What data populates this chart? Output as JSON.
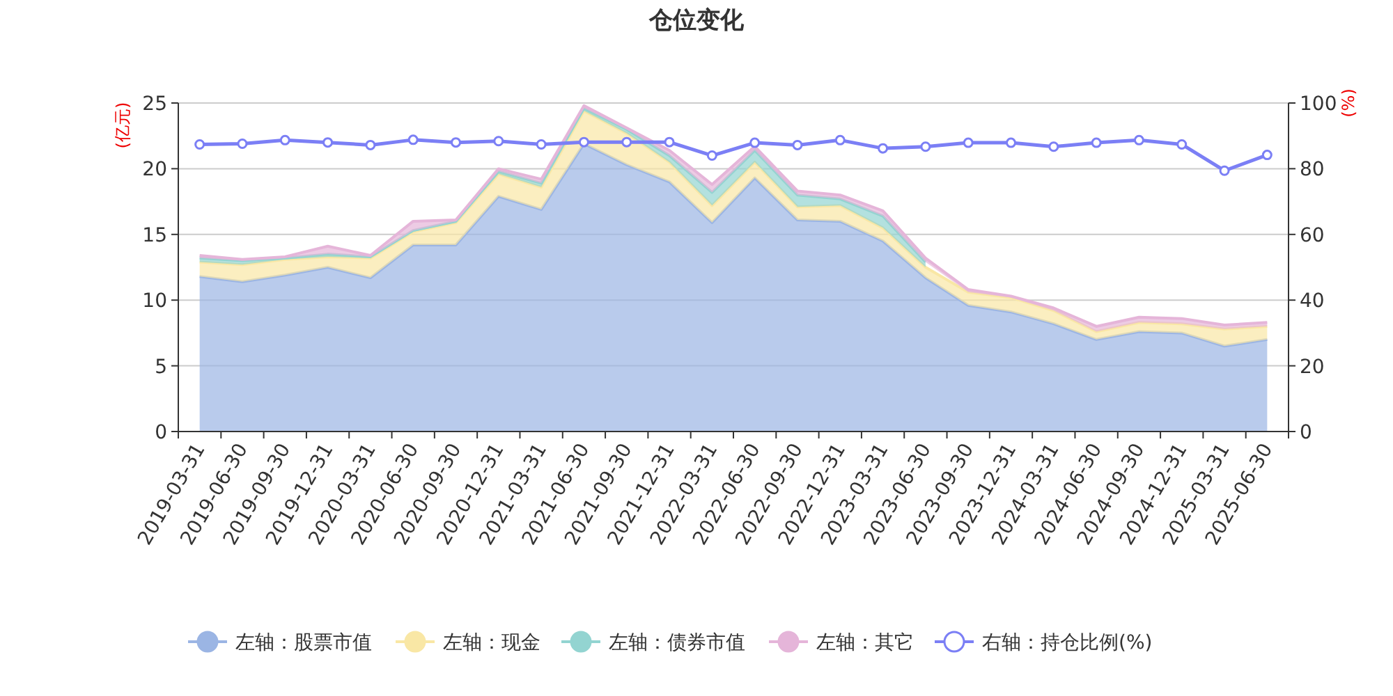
{
  "chart_data": {
    "type": "area",
    "title": "仓位变化",
    "ylabel": "(亿元)",
    "y2label": "(%)",
    "categories": [
      "2019-03-31",
      "2019-06-30",
      "2019-09-30",
      "2019-12-31",
      "2020-03-31",
      "2020-06-30",
      "2020-09-30",
      "2020-12-31",
      "2021-03-31",
      "2021-06-30",
      "2021-09-30",
      "2021-12-31",
      "2022-03-31",
      "2022-06-30",
      "2022-09-30",
      "2022-12-31",
      "2023-03-31",
      "2023-06-30",
      "2023-09-30",
      "2023-12-31",
      "2024-03-31",
      "2024-06-30",
      "2024-09-30",
      "2024-12-31",
      "2025-03-31",
      "2025-06-30"
    ],
    "stacked": true,
    "series": [
      {
        "name": "左轴：股票市值",
        "color": "#9bb5e4",
        "values": [
          11.8,
          11.4,
          11.9,
          12.5,
          11.7,
          14.2,
          14.2,
          17.9,
          16.9,
          21.9,
          20.3,
          19.0,
          15.9,
          19.3,
          16.1,
          16.0,
          14.5,
          11.7,
          9.6,
          9.1,
          8.2,
          7.0,
          7.6,
          7.5,
          6.5,
          7.0
        ]
      },
      {
        "name": "左轴：现金",
        "color": "#f9e7a5",
        "values": [
          1.1,
          1.3,
          1.2,
          0.8,
          1.5,
          1.0,
          1.7,
          1.7,
          1.7,
          2.5,
          2.4,
          1.5,
          1.3,
          1.2,
          1.0,
          1.2,
          1.0,
          0.8,
          1.0,
          1.1,
          1.0,
          0.6,
          0.7,
          0.7,
          1.3,
          1.0
        ]
      },
      {
        "name": "左轴：债券市值",
        "color": "#93d4d1",
        "values": [
          0.3,
          0.3,
          0.1,
          0.2,
          0.1,
          0.1,
          0.1,
          0.2,
          0.3,
          0.2,
          0.3,
          0.5,
          1.0,
          0.9,
          0.9,
          0.5,
          0.9,
          0.4,
          null,
          null,
          null,
          null,
          null,
          null,
          null,
          null
        ]
      },
      {
        "name": "左轴：其它",
        "color": "#e5b5d9",
        "values": [
          0.2,
          0.1,
          0.1,
          0.6,
          0.1,
          0.7,
          0.1,
          0.2,
          0.3,
          0.2,
          0.1,
          0.4,
          0.6,
          0.3,
          0.3,
          0.3,
          0.4,
          0.3,
          0.2,
          0.1,
          0.2,
          0.4,
          0.4,
          0.4,
          0.3,
          0.3
        ]
      },
      {
        "name": "右轴：持仓比例(%)",
        "type": "line",
        "axis": "y2",
        "marker": "circle",
        "color": "#7b7ff5",
        "values": [
          87.4,
          87.6,
          88.7,
          88.0,
          87.2,
          88.8,
          88.0,
          88.4,
          87.4,
          88.1,
          88.1,
          88.1,
          84.0,
          87.9,
          87.2,
          88.7,
          86.2,
          86.7,
          87.9,
          87.9,
          86.7,
          87.9,
          88.7,
          87.4,
          79.4,
          84.2
        ]
      }
    ],
    "ylim": [
      0,
      25
    ],
    "yticks": [
      0,
      5,
      10,
      15,
      20,
      25
    ],
    "y2lim": [
      0,
      100
    ],
    "y2ticks": [
      0,
      20,
      40,
      60,
      80,
      100
    ],
    "grid": "y",
    "legend": "bottom"
  }
}
